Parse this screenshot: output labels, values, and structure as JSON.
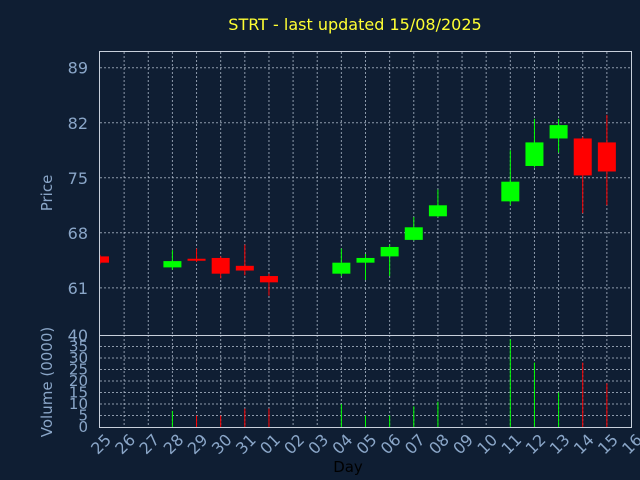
{
  "chart_data": {
    "type": "candlestick",
    "title": "STRT - last updated 15/08/2025",
    "xlabel": "Day",
    "ylabel": "Price",
    "volume_label": "Volume (0000)",
    "price_ylim": [
      55,
      91
    ],
    "price_ticks": [
      89,
      82,
      75,
      68,
      61
    ],
    "volume_tick_labels": [
      "40",
      "35",
      "30",
      "25",
      "20",
      "15",
      "10",
      "5",
      "0"
    ],
    "volume_ylim": [
      0,
      40
    ],
    "grid": true,
    "colors": {
      "up": "#00ff00",
      "down": "#ff0000",
      "title": "#ffff33",
      "axis_text": "#8aa6c8",
      "background": "#0f1e33"
    },
    "x_tick_labels": [
      "25",
      "26",
      "27",
      "28",
      "29",
      "30",
      "31",
      "01",
      "02",
      "03",
      "04",
      "05",
      "06",
      "07",
      "08",
      "09",
      "10",
      "11",
      "12",
      "13",
      "14",
      "15",
      "16"
    ],
    "candles": [
      {
        "day": "25",
        "open": 65.0,
        "close": 64.2,
        "high": 65.2,
        "low": 64.0,
        "volume": 0
      },
      {
        "day": "28",
        "open": 63.6,
        "close": 64.4,
        "high": 65.8,
        "low": 63.3,
        "volume": 7
      },
      {
        "day": "29",
        "open": 64.7,
        "close": 64.5,
        "high": 66.0,
        "low": 64.3,
        "volume": 5
      },
      {
        "day": "30",
        "open": 64.8,
        "close": 62.8,
        "high": 65.0,
        "low": 62.2,
        "volume": 5
      },
      {
        "day": "31",
        "open": 63.8,
        "close": 63.2,
        "high": 66.5,
        "low": 62.6,
        "volume": 8
      },
      {
        "day": "01",
        "open": 62.5,
        "close": 61.7,
        "high": 62.8,
        "low": 60.0,
        "volume": 8
      },
      {
        "day": "04",
        "open": 62.8,
        "close": 64.2,
        "high": 66.0,
        "low": 62.5,
        "volume": 10
      },
      {
        "day": "05",
        "open": 64.2,
        "close": 64.8,
        "high": 65.3,
        "low": 62.0,
        "volume": 5
      },
      {
        "day": "06",
        "open": 65.0,
        "close": 66.2,
        "high": 66.5,
        "low": 62.5,
        "volume": 5
      },
      {
        "day": "07",
        "open": 67.1,
        "close": 68.7,
        "high": 70.0,
        "low": 67.0,
        "volume": 9
      },
      {
        "day": "08",
        "open": 70.1,
        "close": 71.5,
        "high": 73.5,
        "low": 70.0,
        "volume": 11
      },
      {
        "day": "11",
        "open": 72.0,
        "close": 74.5,
        "high": 78.5,
        "low": 71.5,
        "volume": 38
      },
      {
        "day": "12",
        "open": 76.5,
        "close": 79.5,
        "high": 82.5,
        "low": 76.3,
        "volume": 28
      },
      {
        "day": "13",
        "open": 80.0,
        "close": 81.7,
        "high": 82.5,
        "low": 78.2,
        "volume": 15
      },
      {
        "day": "14",
        "open": 80.0,
        "close": 75.3,
        "high": 80.2,
        "low": 70.5,
        "volume": 28
      },
      {
        "day": "15",
        "open": 79.5,
        "close": 75.8,
        "high": 83.0,
        "low": 71.5,
        "volume": 19
      }
    ]
  }
}
